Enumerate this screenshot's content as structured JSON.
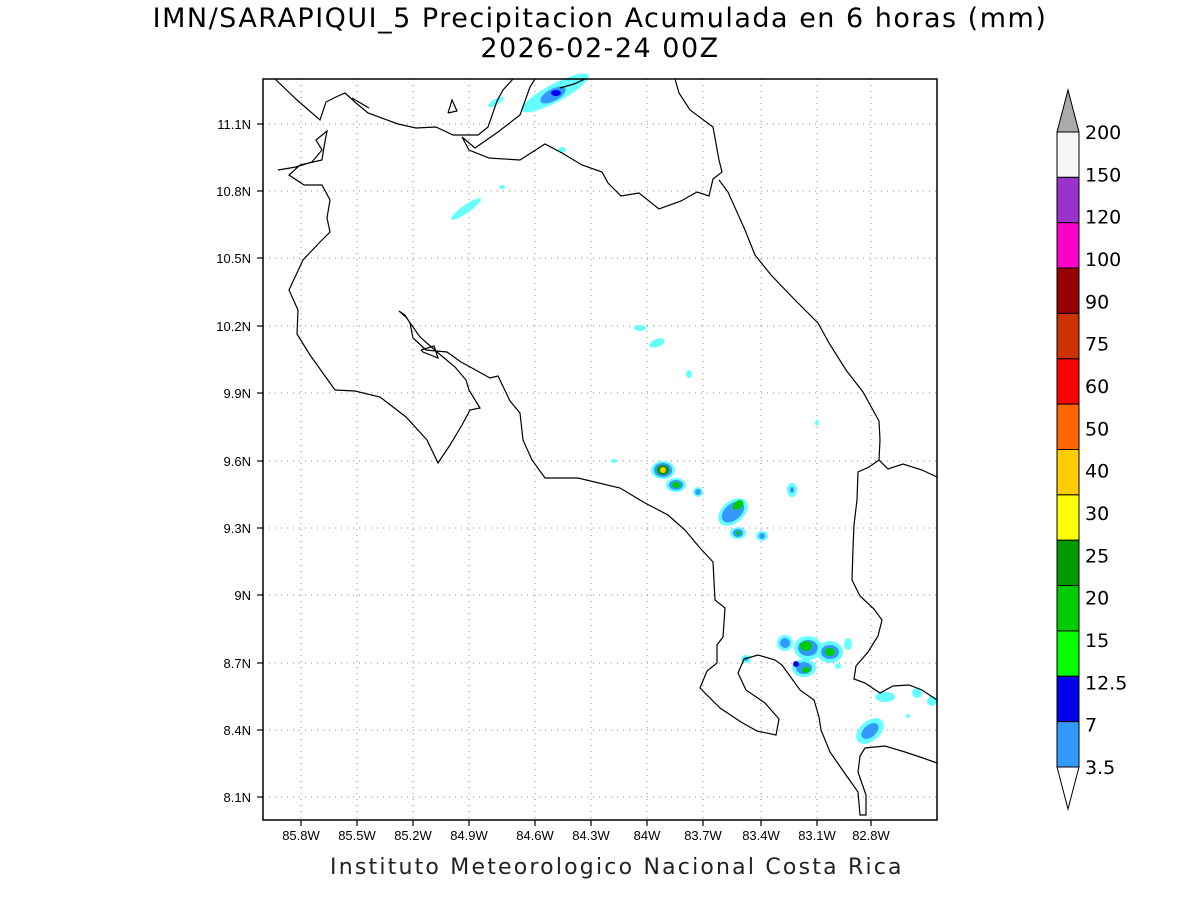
{
  "title_line1": "IMN/SARAPIQUI_5 Precipitacion Acumulada en 6 horas (mm)",
  "title_line2": "2026-02-24 00Z",
  "footer": "Instituto Meteorologico Nacional Costa Rica",
  "map": {
    "lon_range": [
      -86.05,
      -82.45
    ],
    "lat_range": [
      7.95,
      11.3
    ],
    "grid": "dotted",
    "lon_ticks": [
      "85.8W",
      "85.5W",
      "85.2W",
      "84.9W",
      "84.6W",
      "84.3W",
      "84W",
      "83.7W",
      "83.4W",
      "83.1W",
      "82.8W"
    ],
    "lat_ticks": [
      "11.1N",
      "10.8N",
      "10.5N",
      "10.2N",
      "9.9N",
      "9.6N",
      "9.3N",
      "9N",
      "8.7N",
      "8.4N",
      "8.1N"
    ]
  },
  "colorbar": {
    "levels": [
      "3.5",
      "7",
      "12.5",
      "15",
      "20",
      "25",
      "30",
      "40",
      "50",
      "60",
      "75",
      "90",
      "100",
      "120",
      "150",
      "200"
    ],
    "colors": [
      "#66ffff",
      "#3399ff",
      "#0000ee",
      "#00ff00",
      "#00cc00",
      "#009900",
      "#ffff00",
      "#ffcc00",
      "#ff6600",
      "#ff0000",
      "#cc3300",
      "#990000",
      "#ff00cc",
      "#9933cc",
      "#f5f5f5",
      "#aaaaaa"
    ]
  }
}
